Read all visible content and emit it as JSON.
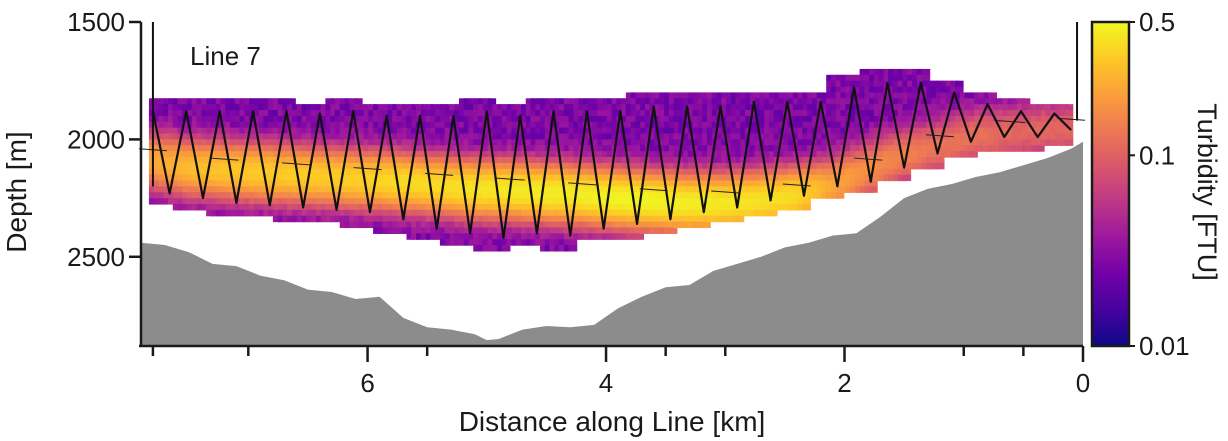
{
  "chart_data": {
    "type": "heatmap",
    "panel_label": "Line 7",
    "xlabel": "Distance along Line [km]",
    "ylabel": "Depth [m]",
    "xlim": [
      7.9,
      0
    ],
    "ylim": [
      2880,
      1500
    ],
    "x_ticks": [
      6,
      4,
      2,
      0
    ],
    "x_minor_ticks": [
      7.8,
      7,
      5.5,
      3.5,
      3,
      1,
      0.5
    ],
    "y_ticks": [
      1500,
      2000,
      2500
    ],
    "colorbar": {
      "label": "Turbidity [FTU]",
      "scale": "log",
      "range": [
        0.01,
        0.5
      ],
      "ticks": [
        0.5,
        0.1,
        0.01
      ],
      "tick_labels": [
        "0.5",
        "0.1",
        "0.01"
      ],
      "colormap": [
        "#0d0887",
        "#46039f",
        "#7201a8",
        "#9c179e",
        "#bd3786",
        "#d8576b",
        "#ed7953",
        "#fb9f3a",
        "#fdca26",
        "#f0f921"
      ]
    },
    "seafloor": {
      "color": "#8c8c8c",
      "x": [
        7.9,
        7.7,
        7.5,
        7.3,
        7.1,
        6.9,
        6.7,
        6.5,
        6.3,
        6.1,
        5.9,
        5.7,
        5.5,
        5.3,
        5.1,
        5.0,
        4.9,
        4.7,
        4.5,
        4.3,
        4.1,
        3.9,
        3.7,
        3.5,
        3.3,
        3.1,
        2.9,
        2.7,
        2.5,
        2.3,
        2.1,
        1.9,
        1.7,
        1.5,
        1.3,
        1.1,
        0.9,
        0.7,
        0.5,
        0.3,
        0.1,
        0.0
      ],
      "depth": [
        2440,
        2450,
        2480,
        2530,
        2540,
        2580,
        2600,
        2640,
        2650,
        2680,
        2670,
        2760,
        2800,
        2810,
        2830,
        2855,
        2850,
        2810,
        2795,
        2800,
        2790,
        2720,
        2670,
        2630,
        2620,
        2560,
        2530,
        2500,
        2460,
        2440,
        2410,
        2400,
        2330,
        2250,
        2210,
        2190,
        2160,
        2140,
        2110,
        2080,
        2040,
        2010
      ]
    },
    "turbidity_max_band": {
      "x": [
        7.8,
        7.5,
        7.2,
        6.9,
        6.6,
        6.3,
        6.0,
        5.7,
        5.4,
        5.1,
        4.8,
        4.5,
        4.2,
        3.9,
        3.6,
        3.3,
        3.0,
        2.7,
        2.4,
        2.1,
        1.8,
        1.5,
        1.2,
        0.9,
        0.6,
        0.3,
        0.1
      ],
      "center_depth": [
        2080,
        2110,
        2120,
        2130,
        2140,
        2150,
        2160,
        2170,
        2185,
        2200,
        2205,
        2215,
        2225,
        2240,
        2250,
        2260,
        2260,
        2250,
        2230,
        2190,
        2120,
        2060,
        2020,
        1980,
        1960,
        1950,
        1950
      ],
      "peak_ftu": [
        0.2,
        0.25,
        0.28,
        0.3,
        0.3,
        0.3,
        0.32,
        0.35,
        0.35,
        0.38,
        0.4,
        0.42,
        0.42,
        0.45,
        0.45,
        0.42,
        0.4,
        0.38,
        0.35,
        0.2,
        0.15,
        0.12,
        0.1,
        0.1,
        0.08,
        0.08,
        0.08
      ]
    },
    "yo_yo_track": {
      "x": [
        7.8,
        7.66,
        7.52,
        7.38,
        7.24,
        7.1,
        6.96,
        6.82,
        6.68,
        6.54,
        6.4,
        6.26,
        6.12,
        5.98,
        5.84,
        5.7,
        5.56,
        5.42,
        5.28,
        5.14,
        5.0,
        4.86,
        4.72,
        4.58,
        4.44,
        4.3,
        4.16,
        4.02,
        3.88,
        3.74,
        3.6,
        3.46,
        3.32,
        3.18,
        3.04,
        2.9,
        2.76,
        2.62,
        2.48,
        2.34,
        2.2,
        2.06,
        1.92,
        1.78,
        1.64,
        1.5,
        1.36,
        1.22,
        1.08,
        0.94,
        0.8,
        0.66,
        0.52,
        0.38,
        0.24,
        0.1
      ],
      "depth": [
        1880,
        2230,
        1880,
        2250,
        1880,
        2270,
        1880,
        2280,
        1880,
        2290,
        1890,
        2300,
        1880,
        2310,
        1900,
        2340,
        1900,
        2380,
        1900,
        2400,
        1880,
        2420,
        1900,
        2400,
        1880,
        2410,
        1880,
        2380,
        1880,
        2360,
        1860,
        2340,
        1860,
        2310,
        1860,
        2290,
        1840,
        2260,
        1840,
        2240,
        1840,
        2200,
        1780,
        2180,
        1760,
        2120,
        1760,
        2060,
        1800,
        2010,
        1850,
        1990,
        1880,
        1990,
        1890,
        1960
      ]
    },
    "frame_lines": {
      "left": {
        "x": 7.8,
        "depth_top": 1500,
        "depth_bottom": 2200
      },
      "right": {
        "x": 0.05,
        "depth_top": 1500,
        "depth_bottom": 1920
      }
    }
  }
}
